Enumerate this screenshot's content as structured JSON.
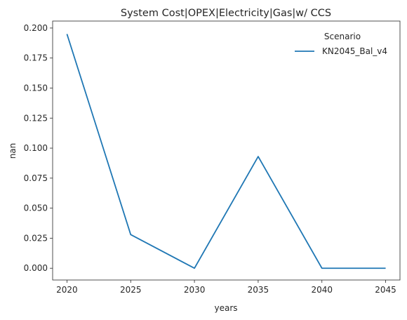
{
  "chart_data": {
    "type": "line",
    "title": "System Cost|OPEX|Electricity|Gas|w/ CCS",
    "xlabel": "years",
    "ylabel": "nan",
    "x": [
      2020,
      2025,
      2030,
      2035,
      2040,
      2045
    ],
    "x_ticks": [
      "2020",
      "2025",
      "2030",
      "2035",
      "2040",
      "2045"
    ],
    "y_ticks": [
      "0.000",
      "0.025",
      "0.050",
      "0.075",
      "0.100",
      "0.125",
      "0.150",
      "0.175",
      "0.200"
    ],
    "ylim": [
      -0.0098,
      0.2058
    ],
    "grid": false,
    "legend": {
      "title": "Scenario",
      "placement": "top-right"
    },
    "series": [
      {
        "name": "KN2045_Bal_v4",
        "color": "#1f77b4",
        "values": [
          0.195,
          0.028,
          0.0,
          0.093,
          0.0,
          0.0
        ]
      }
    ]
  }
}
